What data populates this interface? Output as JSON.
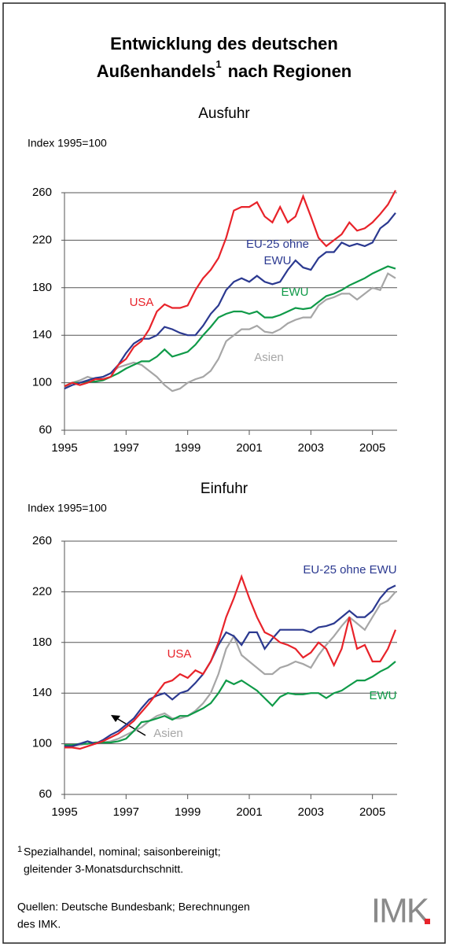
{
  "header": {
    "line1": "Entwicklung des deutschen",
    "line2a": "Außenhandels",
    "sup": "1",
    "line2b": "nach Regionen"
  },
  "chart_data": [
    {
      "type": "line",
      "title": "Ausfuhr",
      "y_label": "Index 1995=100",
      "x": [
        1995,
        1995.25,
        1995.5,
        1995.75,
        1996,
        1996.25,
        1996.5,
        1996.75,
        1997,
        1997.25,
        1997.5,
        1997.75,
        1998,
        1998.25,
        1998.5,
        1998.75,
        1999,
        1999.25,
        1999.5,
        1999.75,
        2000,
        2000.25,
        2000.5,
        2000.75,
        2001,
        2001.25,
        2001.5,
        2001.75,
        2002,
        2002.25,
        2002.5,
        2002.75,
        2003,
        2003.25,
        2003.5,
        2003.75,
        2004,
        2004.25,
        2004.5,
        2004.75,
        2005,
        2005.25,
        2005.5,
        2005.75
      ],
      "xlim": [
        1995,
        2005.8
      ],
      "xticks": [
        1995,
        1997,
        1999,
        2001,
        2003,
        2005
      ],
      "ylim": [
        60,
        260
      ],
      "yticks": [
        60,
        100,
        140,
        180,
        220,
        260
      ],
      "grid": true,
      "series": [
        {
          "name": "USA",
          "color": "#e8232a",
          "values": [
            97,
            100,
            98,
            100,
            103,
            103,
            105,
            115,
            120,
            130,
            135,
            145,
            160,
            166,
            163,
            163,
            165,
            178,
            188,
            195,
            205,
            222,
            245,
            248,
            248,
            252,
            240,
            235,
            248,
            235,
            240,
            257,
            240,
            222,
            215,
            220,
            225,
            235,
            228,
            230,
            235,
            242,
            250,
            262
          ]
        },
        {
          "name": "EU-25 ohne EWU",
          "color": "#2b3990",
          "values": [
            95,
            98,
            100,
            102,
            104,
            105,
            108,
            115,
            125,
            133,
            137,
            137,
            140,
            147,
            145,
            142,
            140,
            140,
            148,
            158,
            165,
            178,
            185,
            188,
            185,
            190,
            185,
            183,
            185,
            195,
            203,
            197,
            195,
            205,
            210,
            210,
            218,
            215,
            217,
            215,
            218,
            230,
            235,
            243
          ]
        },
        {
          "name": "EWU",
          "color": "#0f9a48",
          "values": [
            97,
            100,
            100,
            101,
            101,
            102,
            105,
            108,
            112,
            115,
            118,
            118,
            122,
            128,
            122,
            124,
            126,
            132,
            140,
            147,
            155,
            158,
            160,
            160,
            158,
            160,
            155,
            155,
            157,
            160,
            163,
            162,
            163,
            168,
            173,
            175,
            178,
            182,
            185,
            188,
            192,
            195,
            198,
            196
          ]
        },
        {
          "name": "Asien",
          "color": "#a6a6a6",
          "values": [
            96,
            100,
            102,
            105,
            103,
            105,
            108,
            113,
            115,
            117,
            115,
            110,
            105,
            98,
            93,
            95,
            100,
            103,
            105,
            110,
            120,
            135,
            140,
            145,
            145,
            148,
            143,
            142,
            145,
            150,
            153,
            155,
            155,
            165,
            170,
            172,
            175,
            175,
            170,
            175,
            180,
            178,
            192,
            188
          ]
        }
      ]
    },
    {
      "type": "line",
      "title": "Einfuhr",
      "y_label": "Index 1995=100",
      "x": [
        1995,
        1995.25,
        1995.5,
        1995.75,
        1996,
        1996.25,
        1996.5,
        1996.75,
        1997,
        1997.25,
        1997.5,
        1997.75,
        1998,
        1998.25,
        1998.5,
        1998.75,
        1999,
        1999.25,
        1999.5,
        1999.75,
        2000,
        2000.25,
        2000.5,
        2000.75,
        2001,
        2001.25,
        2001.5,
        2001.75,
        2002,
        2002.25,
        2002.5,
        2002.75,
        2003,
        2003.25,
        2003.5,
        2003.75,
        2004,
        2004.25,
        2004.5,
        2004.75,
        2005,
        2005.25,
        2005.5,
        2005.75
      ],
      "xlim": [
        1995,
        2005.8
      ],
      "xticks": [
        1995,
        1997,
        1999,
        2001,
        2003,
        2005
      ],
      "ylim": [
        60,
        260
      ],
      "yticks": [
        60,
        100,
        140,
        180,
        220,
        260
      ],
      "grid": true,
      "series": [
        {
          "name": "USA",
          "color": "#e8232a",
          "values": [
            97,
            97,
            96,
            98,
            100,
            102,
            105,
            108,
            113,
            118,
            125,
            132,
            140,
            148,
            150,
            155,
            152,
            158,
            155,
            165,
            180,
            200,
            215,
            232,
            215,
            200,
            188,
            185,
            180,
            178,
            175,
            168,
            172,
            180,
            175,
            162,
            175,
            200,
            175,
            178,
            165,
            165,
            175,
            190
          ]
        },
        {
          "name": "EU-25 ohne EWU",
          "color": "#2b3990",
          "values": [
            98,
            98,
            100,
            102,
            100,
            103,
            107,
            110,
            115,
            120,
            128,
            135,
            138,
            140,
            135,
            140,
            142,
            148,
            155,
            165,
            178,
            188,
            185,
            178,
            188,
            188,
            175,
            183,
            190,
            190,
            190,
            190,
            188,
            192,
            193,
            195,
            200,
            205,
            200,
            200,
            205,
            215,
            222,
            225
          ]
        },
        {
          "name": "EWU",
          "color": "#0f9a48",
          "values": [
            99,
            99,
            100,
            100,
            101,
            101,
            101,
            102,
            104,
            110,
            117,
            118,
            120,
            122,
            119,
            122,
            122,
            125,
            128,
            132,
            140,
            150,
            147,
            150,
            146,
            142,
            136,
            130,
            137,
            140,
            139,
            139,
            140,
            140,
            136,
            140,
            142,
            146,
            150,
            150,
            153,
            157,
            160,
            165
          ]
        },
        {
          "name": "Asien",
          "color": "#a6a6a6",
          "values": [
            99,
            98,
            99,
            100,
            101,
            101,
            102,
            104,
            107,
            110,
            113,
            118,
            122,
            124,
            120,
            120,
            122,
            126,
            132,
            140,
            155,
            175,
            185,
            170,
            165,
            160,
            155,
            155,
            160,
            162,
            165,
            163,
            160,
            170,
            178,
            185,
            193,
            200,
            195,
            190,
            200,
            210,
            213,
            220
          ]
        }
      ]
    }
  ],
  "footnote": {
    "mark": "1",
    "line1": "Spezialhandel, nominal; saisonbereinigt;",
    "line2": "gleitender  3-Monatsdurchschnitt."
  },
  "sources": {
    "line1": "Quellen: Deutsche Bundesbank; Berechnungen",
    "line2": "des IMK."
  },
  "logo": "IMK"
}
